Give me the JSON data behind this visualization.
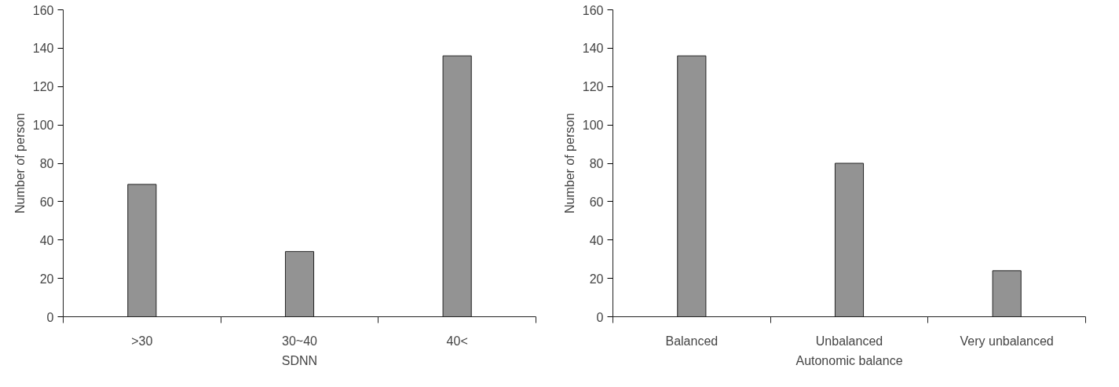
{
  "chart_data": [
    {
      "type": "bar",
      "categories": [
        ">30",
        "30~40",
        "40<"
      ],
      "values": [
        69,
        34,
        136
      ],
      "color": "#939393",
      "xlabel": "SDNN",
      "ylabel": "Number of person",
      "ylim": [
        0,
        160
      ],
      "yticks": [
        0,
        20,
        40,
        60,
        80,
        100,
        120,
        140,
        160
      ],
      "grid": false
    },
    {
      "type": "bar",
      "categories": [
        "Balanced",
        "Unbalanced",
        "Very unbalanced"
      ],
      "values": [
        136,
        80,
        24
      ],
      "color": "#939393",
      "xlabel": "Autonomic balance",
      "ylabel": "Number of person",
      "ylim": [
        0,
        160
      ],
      "yticks": [
        0,
        20,
        40,
        60,
        80,
        100,
        120,
        140,
        160
      ],
      "grid": false
    }
  ]
}
